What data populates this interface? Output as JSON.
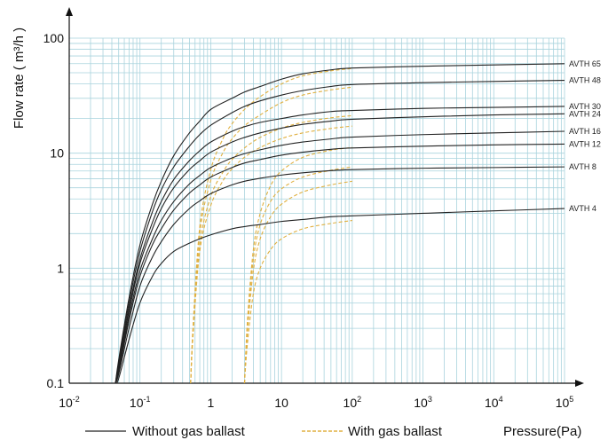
{
  "chart_data": {
    "type": "line",
    "title": "",
    "xlabel": "Pressure(Pa)",
    "ylabel": "Flow rate ( m³/h )",
    "xscale": "log",
    "yscale": "log",
    "xlim": [
      0.01,
      100000
    ],
    "ylim": [
      0.1,
      100
    ],
    "grid": true,
    "x_ticks": [
      {
        "base": "10",
        "exp": "-2"
      },
      {
        "base": "10",
        "exp": "-1"
      },
      {
        "base": "1",
        "exp": ""
      },
      {
        "base": "10",
        "exp": ""
      },
      {
        "base": "10",
        "exp": "2"
      },
      {
        "base": "10",
        "exp": "3"
      },
      {
        "base": "10",
        "exp": "4"
      },
      {
        "base": "10",
        "exp": "5"
      }
    ],
    "y_ticks": [
      "0.1",
      "1",
      "10",
      "100"
    ],
    "legend": [
      {
        "label": "Without gas ballast",
        "style": "solid",
        "color": "#222222"
      },
      {
        "label": "With gas ballast",
        "style": "dashed",
        "color": "#e0b040"
      }
    ],
    "x": [
      0.045,
      0.05,
      0.07,
      0.1,
      0.15,
      0.2,
      0.3,
      0.5,
      0.7,
      1,
      2,
      3,
      5,
      10,
      20,
      50,
      100,
      1000,
      10000,
      100000
    ],
    "series": [
      {
        "name": "AVTH 65",
        "values": [
          0.1,
          0.16,
          0.55,
          1.6,
          3.6,
          5.7,
          9.5,
          15,
          19,
          24,
          30,
          34,
          38,
          44,
          49,
          53,
          55,
          57,
          58.5,
          60
        ]
      },
      {
        "name": "AVTH 48",
        "values": [
          0.1,
          0.15,
          0.5,
          1.4,
          3.1,
          4.8,
          7.6,
          11.5,
          14.5,
          17.5,
          22.5,
          25.5,
          28.5,
          32,
          35,
          38,
          39.5,
          41,
          42,
          43
        ]
      },
      {
        "name": "AVTH 30",
        "values": [
          0.1,
          0.14,
          0.45,
          1.2,
          2.5,
          3.8,
          5.9,
          8.6,
          10.5,
          12.5,
          15.5,
          17,
          18.5,
          20,
          21.5,
          23,
          23.5,
          24.5,
          25,
          25.5
        ]
      },
      {
        "name": "AVTH 24",
        "values": [
          0.1,
          0.135,
          0.42,
          1.1,
          2.2,
          3.3,
          5.0,
          7.2,
          8.6,
          10.2,
          12.5,
          13.7,
          15,
          16.5,
          17.8,
          19,
          19.7,
          20.7,
          21.5,
          22
        ]
      },
      {
        "name": "AVTH 16",
        "values": [
          0.1,
          0.13,
          0.38,
          0.95,
          1.8,
          2.6,
          3.8,
          5.4,
          6.4,
          7.5,
          9.1,
          9.9,
          10.7,
          11.7,
          12.5,
          13.3,
          13.8,
          14.5,
          15,
          15.5
        ]
      },
      {
        "name": "AVTH 12",
        "values": [
          0.1,
          0.125,
          0.35,
          0.85,
          1.6,
          2.2,
          3.2,
          4.5,
          5.3,
          6.2,
          7.5,
          8.2,
          8.8,
          9.6,
          10.2,
          10.8,
          11.1,
          11.5,
          11.8,
          12
        ]
      },
      {
        "name": "AVTH 8",
        "values": [
          0.1,
          0.12,
          0.3,
          0.7,
          1.25,
          1.7,
          2.4,
          3.3,
          3.85,
          4.45,
          5.3,
          5.7,
          6.05,
          6.45,
          6.75,
          7.05,
          7.2,
          7.4,
          7.5,
          7.6
        ]
      },
      {
        "name": "AVTH 4",
        "values": [
          0.1,
          0.11,
          0.24,
          0.5,
          0.85,
          1.1,
          1.4,
          1.65,
          1.8,
          1.95,
          2.2,
          2.3,
          2.4,
          2.55,
          2.65,
          2.8,
          2.85,
          3.0,
          3.15,
          3.3
        ]
      }
    ],
    "gas_ballast_series": [
      {
        "x": [
          0.52,
          0.56,
          0.7,
          1,
          1.5,
          2,
          3,
          5,
          10,
          20,
          50,
          100
        ],
        "values": [
          0.1,
          0.3,
          2.3,
          7.2,
          13.5,
          18,
          24,
          31,
          40,
          47,
          52,
          54.5
        ]
      },
      {
        "x": [
          0.52,
          0.56,
          0.7,
          1,
          1.5,
          2,
          3,
          5,
          10,
          20,
          50,
          100
        ],
        "values": [
          0.1,
          0.28,
          2.0,
          5.8,
          10.2,
          13.3,
          17.3,
          21.5,
          27.5,
          32,
          35.5,
          37.5
        ]
      },
      {
        "x": [
          0.52,
          0.56,
          0.7,
          1,
          1.5,
          2,
          3,
          5,
          10,
          20,
          50,
          100
        ],
        "values": [
          0.1,
          0.26,
          1.6,
          4.2,
          6.9,
          8.8,
          11.1,
          13.7,
          16.5,
          18.5,
          20.3,
          21.2
        ]
      },
      {
        "x": [
          0.52,
          0.56,
          0.7,
          1,
          1.5,
          2,
          3,
          5,
          10,
          20,
          50,
          100
        ],
        "values": [
          0.1,
          0.25,
          1.4,
          3.5,
          5.8,
          7.3,
          9.2,
          11.2,
          13.4,
          15,
          16.4,
          17.2
        ]
      },
      {
        "x": [
          3.0,
          3.3,
          4,
          5,
          7,
          10,
          20,
          50,
          100
        ],
        "values": [
          0.1,
          0.35,
          1.45,
          3.0,
          5.2,
          7.0,
          9.2,
          10.6,
          11.2
        ]
      },
      {
        "x": [
          3.0,
          3.3,
          4,
          5,
          7,
          10,
          20,
          50,
          100
        ],
        "values": [
          0.1,
          0.32,
          1.2,
          2.4,
          3.8,
          4.9,
          6.2,
          7.1,
          7.6
        ]
      },
      {
        "x": [
          3.0,
          3.3,
          4,
          5,
          7,
          10,
          20,
          50,
          100
        ],
        "values": [
          0.1,
          0.28,
          0.95,
          1.8,
          2.8,
          3.6,
          4.6,
          5.3,
          5.7
        ]
      },
      {
        "x": [
          3.0,
          3.3,
          4,
          5,
          7,
          10,
          20,
          50,
          100
        ],
        "values": [
          0.1,
          0.22,
          0.6,
          1.0,
          1.45,
          1.8,
          2.2,
          2.45,
          2.6
        ]
      }
    ]
  }
}
